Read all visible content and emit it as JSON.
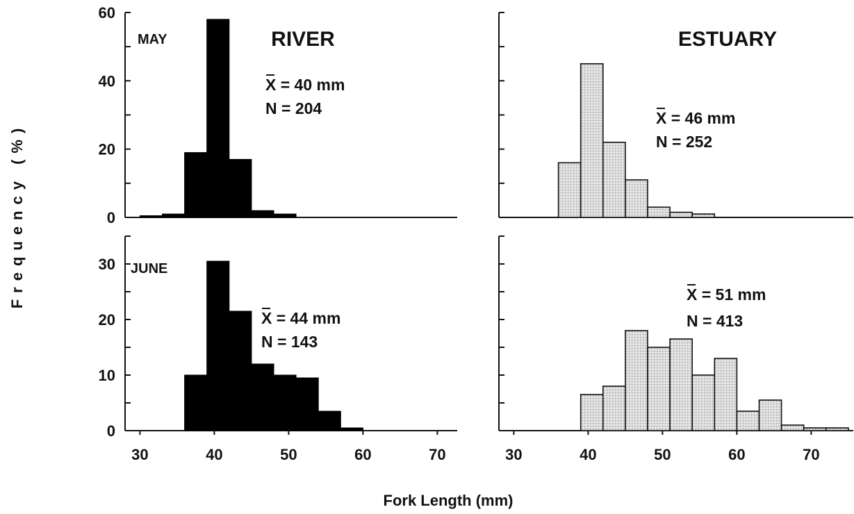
{
  "chart_data": {
    "type": "bar",
    "ylabel": "Frequency (%)",
    "xlabel": "Fork Length (mm)",
    "xlim": [
      28,
      75
    ],
    "x_ticks": [
      30,
      40,
      50,
      60,
      70
    ],
    "bin_width": 3,
    "columns": [
      "RIVER",
      "ESTUARY"
    ],
    "rows": [
      "MAY",
      "JUNE"
    ],
    "colors": {
      "river_fill": "#000000",
      "estuary_fill": "#d7d7d7",
      "estuary_stroke": "#111111"
    },
    "panels": [
      {
        "month": "MAY",
        "site": "RIVER",
        "fill": "dark",
        "ylim": [
          0,
          60
        ],
        "y_ticks": [
          0,
          20,
          40,
          60
        ],
        "mean": "X = 40 mm",
        "n": "N = 204",
        "bins": [
          30,
          33,
          36,
          39,
          42,
          45,
          48,
          51
        ],
        "values": [
          0.5,
          1,
          19,
          58,
          17,
          2,
          1,
          0
        ]
      },
      {
        "month": "MAY",
        "site": "ESTUARY",
        "fill": "light",
        "ylim": [
          0,
          60
        ],
        "y_ticks": [],
        "mean": "X = 46 mm",
        "n": "N = 252",
        "bins": [
          36,
          39,
          42,
          45,
          48,
          51,
          54
        ],
        "values": [
          16,
          45,
          22,
          11,
          3,
          1.5,
          1
        ]
      },
      {
        "month": "JUNE",
        "site": "RIVER",
        "fill": "dark",
        "ylim": [
          0,
          35
        ],
        "y_ticks": [
          0,
          10,
          20,
          30
        ],
        "mean": "X = 44 mm",
        "n": "N = 143",
        "bins": [
          36,
          39,
          42,
          45,
          48,
          51,
          54,
          57
        ],
        "values": [
          10,
          30.5,
          21.5,
          12,
          10,
          9.5,
          3.5,
          0.5
        ]
      },
      {
        "month": "JUNE",
        "site": "ESTUARY",
        "fill": "light",
        "ylim": [
          0,
          35
        ],
        "y_ticks": [],
        "mean": "X = 51 mm",
        "n": "N = 413",
        "bins": [
          39,
          42,
          45,
          48,
          51,
          54,
          57,
          60,
          63,
          66,
          69,
          72
        ],
        "values": [
          6.5,
          8,
          18,
          15,
          16.5,
          10,
          13,
          3.5,
          5.5,
          1,
          0.5,
          0.5
        ]
      }
    ]
  }
}
